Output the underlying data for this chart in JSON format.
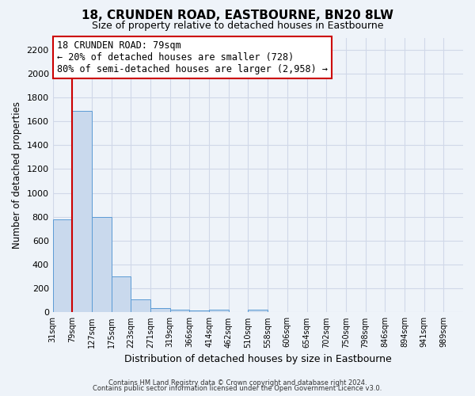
{
  "title": "18, CRUNDEN ROAD, EASTBOURNE, BN20 8LW",
  "subtitle": "Size of property relative to detached houses in Eastbourne",
  "xlabel": "Distribution of detached houses by size in Eastbourne",
  "ylabel": "Number of detached properties",
  "bar_values": [
    780,
    1690,
    800,
    300,
    110,
    35,
    25,
    15,
    20,
    0,
    25,
    0,
    0,
    0,
    0,
    0,
    0,
    0,
    0,
    0
  ],
  "categories": [
    "31sqm",
    "79sqm",
    "127sqm",
    "175sqm",
    "223sqm",
    "271sqm",
    "319sqm",
    "366sqm",
    "414sqm",
    "462sqm",
    "510sqm",
    "558sqm",
    "606sqm",
    "654sqm",
    "702sqm",
    "750sqm",
    "798sqm",
    "846sqm",
    "894sqm",
    "941sqm",
    "989sqm"
  ],
  "bar_color": "#c9d9ed",
  "bar_edge_color": "#5b9bd5",
  "highlight_line_color": "#cc0000",
  "annotation_box_color": "#ffffff",
  "annotation_border_color": "#cc0000",
  "annotation_text_line1": "18 CRUNDEN ROAD: 79sqm",
  "annotation_text_line2": "← 20% of detached houses are smaller (728)",
  "annotation_text_line3": "80% of semi-detached houses are larger (2,958) →",
  "ylim": [
    0,
    2300
  ],
  "yticks": [
    0,
    200,
    400,
    600,
    800,
    1000,
    1200,
    1400,
    1600,
    1800,
    2000,
    2200
  ],
  "footer_line1": "Contains HM Land Registry data © Crown copyright and database right 2024.",
  "footer_line2": "Contains public sector information licensed under the Open Government Licence v3.0.",
  "bg_color": "#eef3f9",
  "plot_bg_color": "#eef3f9",
  "grid_color": "#d0d8e8",
  "figsize": [
    6.0,
    5.0
  ],
  "dpi": 100
}
